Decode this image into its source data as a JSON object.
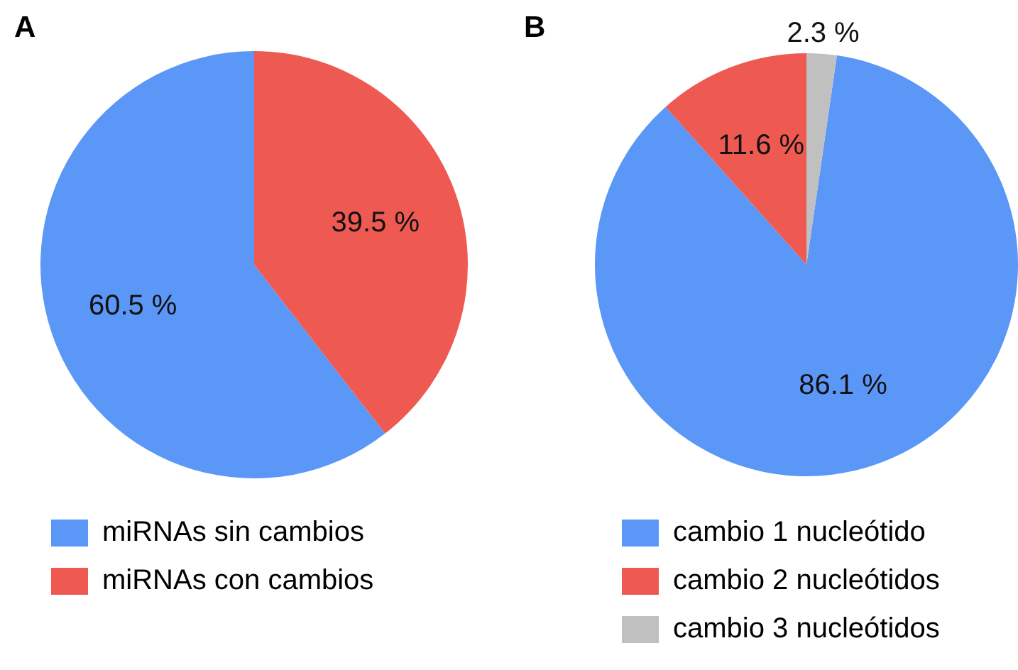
{
  "chart_data": [
    {
      "type": "pie",
      "title": "A",
      "categories": [
        "miRNAs sin cambios",
        "miRNAs con cambios"
      ],
      "values": [
        60.5,
        39.5
      ],
      "colors": [
        "#5b97f7",
        "#ee5a52"
      ],
      "value_labels": [
        "60.5 %",
        "39.5 %"
      ],
      "legend": "bottom"
    },
    {
      "type": "pie",
      "title": "B",
      "categories": [
        "cambio 1 nucleótido",
        "cambio 2 nucleótidos",
        "cambio 3 nucleótidos"
      ],
      "values": [
        86.1,
        11.6,
        2.3
      ],
      "colors": [
        "#5b97f7",
        "#ee5a52",
        "#c0c0c0"
      ],
      "value_labels": [
        "86.1 %",
        "11.6 %",
        "2.3 %"
      ],
      "legend": "bottom"
    }
  ]
}
